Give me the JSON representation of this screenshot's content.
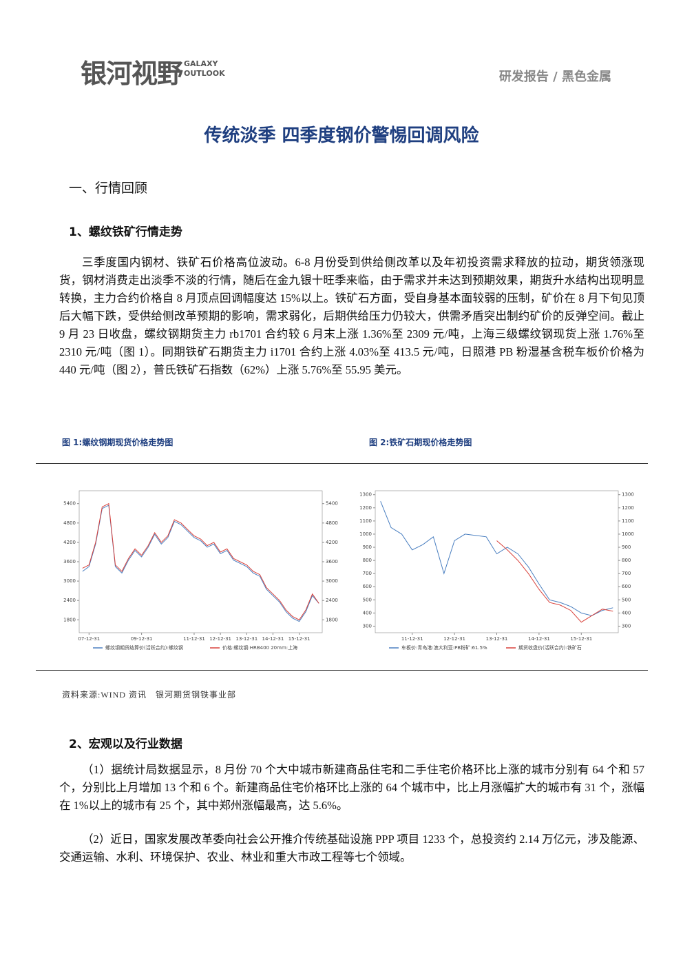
{
  "header": {
    "logo": "银河视野",
    "logo_en_1": "GALAXY",
    "logo_en_2": "OUTLOOK",
    "category": "研发报告 / 黑色金属"
  },
  "title": "传统淡季 四季度钢价警惕回调风险",
  "section1": {
    "heading": "一、行情回顾",
    "subheading": "1、螺纹铁矿行情走势",
    "paragraph": "三季度国内钢材、铁矿石价格高位波动。6-8 月份受到供给侧改革以及年初投资需求释放的拉动，期货领涨现货，钢材消费走出淡季不淡的行情，随后在金九银十旺季来临，由于需求并未达到预期效果，期货升水结构出现明显转换，主力合约价格自 8 月顶点回调幅度达 15%以上。铁矿石方面，受自身基本面较弱的压制，矿价在 8 月下旬见顶后大幅下跌，受供给侧改革预期的影响，需求弱化，后期供给压力仍较大，供需矛盾突出制约矿价的反弹空间。截止 9 月 23 日收盘，螺纹钢期货主力 rb1701 合约较 6 月末上涨 1.36%至 2309 元/吨，上海三级螺纹钢现货上涨 1.76%至 2310 元/吨（图 1）。同期铁矿石期货主力 i1701 合约上涨 4.03%至 413.5 元/吨，日照港 PB 粉湿基含税车板价价格为 440 元/吨（图 2），普氏铁矿石指数（62%）上涨 5.76%至 55.95 美元。"
  },
  "figures": [
    {
      "caption": "图 1:螺纹钢期现货价格走势图",
      "chart": {
        "type": "line",
        "categories": [
          null,
          "07-12-31",
          null,
          null,
          null,
          null,
          null,
          null,
          null,
          "09-12-31",
          null,
          null,
          null,
          null,
          null,
          null,
          null,
          "11-12-31",
          null,
          null,
          null,
          "12-12-31",
          null,
          null,
          null,
          "13-12-31",
          null,
          null,
          null,
          "14-12-31",
          null,
          null,
          null,
          "15-12-31",
          null,
          null,
          null
        ],
        "ylim": [
          1400,
          5800
        ],
        "yticks": [
          1800,
          2400,
          3000,
          3600,
          4200,
          4800,
          5400
        ],
        "series": [
          {
            "name": "螺纹钢期货结算价(活跃合约):螺纹钢",
            "color": "#4a7fc0",
            "values": [
              3300,
              3450,
              4150,
              5250,
              5350,
              3450,
              3250,
              3650,
              3950,
              3750,
              4050,
              4450,
              4150,
              4350,
              4850,
              4750,
              4550,
              4350,
              4250,
              4050,
              4150,
              3850,
              3950,
              3650,
              3550,
              3450,
              3250,
              3150,
              2750,
              2550,
              2350,
              2050,
              1850,
              1750,
              2050,
              2550,
              2309
            ]
          },
          {
            "name": "价格:螺纹钢:HRB400 20mm:上海",
            "color": "#d9413a",
            "values": [
              3400,
              3500,
              4200,
              5300,
              5400,
              3500,
              3300,
              3700,
              4000,
              3800,
              4100,
              4500,
              4200,
              4400,
              4900,
              4800,
              4600,
              4400,
              4300,
              4100,
              4200,
              3900,
              4000,
              3700,
              3600,
              3500,
              3300,
              3200,
              2800,
              2600,
              2400,
              2100,
              1900,
              1800,
              2100,
              2600,
              2310
            ]
          }
        ]
      }
    },
    {
      "caption": "图 2:铁矿石期现价格走势图",
      "chart": {
        "type": "line",
        "categories": [
          null,
          null,
          null,
          "11-12-31",
          null,
          null,
          null,
          "12-12-31",
          null,
          null,
          null,
          "13-12-31",
          null,
          null,
          null,
          "14-12-31",
          null,
          null,
          null,
          "15-12-31",
          null,
          null,
          null
        ],
        "ylim": [
          250,
          1330
        ],
        "yticks": [
          300,
          400,
          500,
          600,
          700,
          800,
          900,
          1000,
          1100,
          1200,
          1300
        ],
        "series": [
          {
            "name": "车板价:青岛港:澳大利亚:PB粉矿:61.5%",
            "color": "#4a7fc0",
            "values": [
              1250,
              1050,
              1000,
              880,
              920,
              980,
              700,
              950,
              1000,
              990,
              980,
              850,
              900,
              850,
              750,
              620,
              500,
              480,
              450,
              400,
              380,
              420,
              440
            ]
          },
          {
            "name": "期货收盘价(活跃合约):铁矿石",
            "color": "#d9413a",
            "values": [
              null,
              null,
              null,
              null,
              null,
              null,
              null,
              null,
              null,
              null,
              null,
              950,
              880,
              800,
              700,
              580,
              480,
              460,
              420,
              330,
              380,
              430,
              413.5
            ]
          }
        ]
      }
    }
  ],
  "source": "资料来源:WIND 资讯　银河期货钢铁事业部",
  "section2": {
    "heading": "2、宏观以及行业数据",
    "paragraphs": [
      "（1）据统计局数据显示，8 月份 70 个大中城市新建商品住宅和二手住宅价格环比上涨的城市分别有 64 个和 57 个，分别比上月增加 13 个和 6 个。新建商品住宅价格环比上涨的 64 个城市中，比上月涨幅扩大的城市有 31 个，涨幅在 1%以上的城市有 25 个，其中郑州涨幅最高，达 5.6%。",
      "（2）近日，国家发展改革委向社会公开推介传统基础设施 PPP 项目 1233 个，总投资约 2.14 万亿元，涉及能源、交通运输、水利、环境保护、农业、林业和重大市政工程等七个领域。"
    ]
  }
}
